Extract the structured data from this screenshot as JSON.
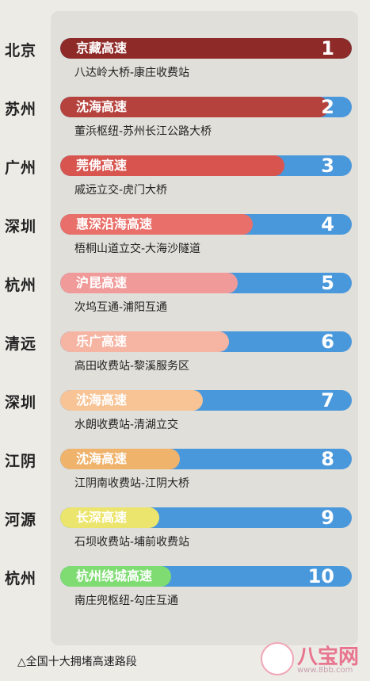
{
  "chart_data": {
    "type": "bar",
    "title": "",
    "caption": "△全国十大拥堵高速路段",
    "rows": [
      {
        "rank": "1",
        "city": "北京",
        "highway": "京藏高速",
        "segment": "八达岭大桥-康庄收费站",
        "value": 1.0,
        "color": "#8e2a27"
      },
      {
        "rank": "2",
        "city": "苏州",
        "highway": "沈海高速",
        "segment": "董浜枢纽-苏州长江公路大桥",
        "value": 0.92,
        "color": "#b5423d"
      },
      {
        "rank": "3",
        "city": "广州",
        "highway": "莞佛高速",
        "segment": "戚远立交-虎门大桥",
        "value": 0.77,
        "color": "#d8554f"
      },
      {
        "rank": "4",
        "city": "深圳",
        "highway": "惠深沿海高速",
        "segment": "梧桐山道立交-大海沙隧道",
        "value": 0.66,
        "color": "#e9706a"
      },
      {
        "rank": "5",
        "city": "杭州",
        "highway": "沪昆高速",
        "segment": "次坞互通-浦阳互通",
        "value": 0.61,
        "color": "#f19a9a"
      },
      {
        "rank": "6",
        "city": "清远",
        "highway": "乐广高速",
        "segment": "高田收费站-黎溪服务区",
        "value": 0.58,
        "color": "#f6b4a2"
      },
      {
        "rank": "7",
        "city": "深圳",
        "highway": "沈海高速",
        "segment": "水朗收费站-清湖立交",
        "value": 0.49,
        "color": "#f8c495"
      },
      {
        "rank": "8",
        "city": "江阴",
        "highway": "沈海高速",
        "segment": "江阴南收费站-江阴大桥",
        "value": 0.41,
        "color": "#f0b36c"
      },
      {
        "rank": "9",
        "city": "河源",
        "highway": "长深高速",
        "segment": "石坝收费站-埔前收费站",
        "value": 0.34,
        "color": "#ece56d"
      },
      {
        "rank": "10",
        "city": "杭州",
        "highway": "杭州绕城高速",
        "segment": "南庄兜枢纽-勾庄互通",
        "value": 0.38,
        "color": "#7fdc72"
      }
    ]
  },
  "watermark": {
    "text": "八宝网",
    "url": "www.8bb.com",
    "icon": "baby-face-icon"
  }
}
